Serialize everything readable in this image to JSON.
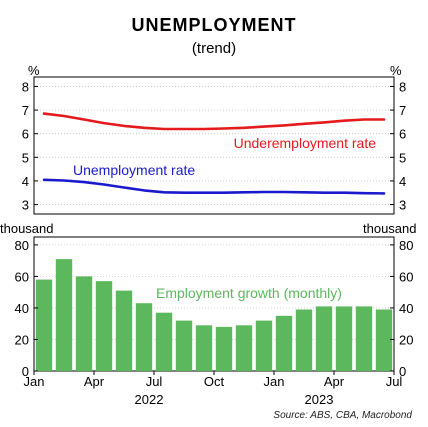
{
  "chart_data": [
    {
      "type": "line",
      "title": "UNEMPLOYMENT",
      "subtitle": "(trend)",
      "unit_left": "%",
      "unit_right": "%",
      "ylim": [
        2.6,
        8.4
      ],
      "yticks": [
        3,
        4,
        5,
        6,
        7,
        8
      ],
      "x": [
        "2022-01",
        "2022-02",
        "2022-03",
        "2022-04",
        "2022-05",
        "2022-06",
        "2022-07",
        "2022-08",
        "2022-09",
        "2022-10",
        "2022-11",
        "2022-12",
        "2023-01",
        "2023-02",
        "2023-03",
        "2023-04",
        "2023-05",
        "2023-06"
      ],
      "series": [
        {
          "name": "Underemployment rate",
          "color": "#e41a1c",
          "values": [
            6.85,
            6.75,
            6.6,
            6.45,
            6.33,
            6.25,
            6.2,
            6.2,
            6.2,
            6.22,
            6.25,
            6.3,
            6.35,
            6.42,
            6.48,
            6.55,
            6.6,
            6.6
          ]
        },
        {
          "name": "Unemployment rate",
          "color": "#1a1acc",
          "values": [
            4.05,
            4.02,
            3.95,
            3.85,
            3.72,
            3.6,
            3.52,
            3.5,
            3.5,
            3.5,
            3.52,
            3.53,
            3.53,
            3.52,
            3.5,
            3.5,
            3.48,
            3.47
          ]
        }
      ]
    },
    {
      "type": "bar",
      "unit_left": "thousand",
      "unit_right": "thousand",
      "ylim": [
        0,
        85
      ],
      "yticks": [
        0,
        20,
        40,
        60,
        80
      ],
      "x": [
        "2022-01",
        "2022-02",
        "2022-03",
        "2022-04",
        "2022-05",
        "2022-06",
        "2022-07",
        "2022-08",
        "2022-09",
        "2022-10",
        "2022-11",
        "2022-12",
        "2023-01",
        "2023-02",
        "2023-03",
        "2023-04",
        "2023-05",
        "2023-06"
      ],
      "series": [
        {
          "name": "Employment growth (monthly)",
          "color": "#5cb85c",
          "values": [
            58,
            71,
            60,
            57,
            51,
            43,
            37,
            32,
            29,
            28,
            29,
            32,
            35,
            39,
            41,
            41,
            41,
            39
          ]
        }
      ],
      "xticklabels": [
        "Jan",
        "Apr",
        "Jul",
        "Oct",
        "Jan",
        "Apr",
        "Jul"
      ],
      "year_labels": [
        "2022",
        "2023"
      ]
    }
  ],
  "source": "Source: ABS, CBA, Macrobond"
}
